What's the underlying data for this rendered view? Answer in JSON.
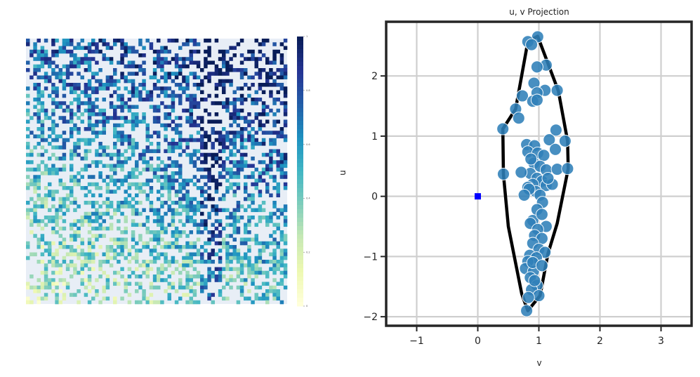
{
  "chart_data": [
    {
      "type": "heatmap",
      "title": "",
      "xlabel": "",
      "ylabel": "",
      "colormap": "YlGnBu",
      "color_range": [
        0,
        1
      ],
      "colorbar_ticks": [
        0,
        0.2,
        0.4,
        0.6,
        0.8,
        1
      ],
      "background_color": "#e8eef6",
      "rows": 72,
      "cols": 72
    },
    {
      "type": "scatter",
      "title": "u, v Projection",
      "xlabel": "v",
      "ylabel": "u",
      "xlim": [
        -1.5,
        3.5
      ],
      "ylim": [
        -2.15,
        2.9
      ],
      "xticks": [
        -1,
        0,
        1,
        2,
        3
      ],
      "yticks": [
        -2,
        -1,
        0,
        1,
        2
      ],
      "xtick_labels": [
        "−1",
        "0",
        "1",
        "2",
        "3"
      ],
      "ytick_labels": [
        "−2",
        "−1",
        "0",
        "1",
        "2"
      ],
      "grid": true,
      "point_color": "#2f7fb8",
      "marker_color": "#0000ff",
      "hull_color": "#000000",
      "origin_marker": [
        0,
        0
      ],
      "points": [
        [
          0.98,
          2.65
        ],
        [
          0.82,
          2.57
        ],
        [
          0.88,
          2.52
        ],
        [
          1.12,
          2.18
        ],
        [
          0.97,
          2.15
        ],
        [
          0.92,
          1.88
        ],
        [
          1.1,
          1.76
        ],
        [
          0.97,
          1.72
        ],
        [
          1.3,
          1.76
        ],
        [
          0.73,
          1.67
        ],
        [
          0.9,
          1.58
        ],
        [
          0.97,
          1.6
        ],
        [
          0.62,
          1.45
        ],
        [
          0.67,
          1.3
        ],
        [
          0.41,
          1.12
        ],
        [
          1.28,
          1.1
        ],
        [
          0.8,
          0.86
        ],
        [
          0.93,
          0.84
        ],
        [
          1.17,
          0.94
        ],
        [
          1.27,
          0.78
        ],
        [
          1.43,
          0.92
        ],
        [
          0.82,
          0.74
        ],
        [
          0.98,
          0.72
        ],
        [
          1.08,
          0.68
        ],
        [
          0.92,
          0.55
        ],
        [
          1.02,
          0.5
        ],
        [
          0.86,
          0.38
        ],
        [
          1.12,
          0.44
        ],
        [
          1.3,
          0.45
        ],
        [
          1.47,
          0.46
        ],
        [
          0.71,
          0.4
        ],
        [
          0.42,
          0.37
        ],
        [
          0.97,
          0.3
        ],
        [
          1.05,
          0.25
        ],
        [
          0.9,
          0.2
        ],
        [
          0.82,
          0.15
        ],
        [
          1.12,
          0.18
        ],
        [
          1.22,
          0.2
        ],
        [
          0.95,
          0.08
        ],
        [
          1.02,
          0.02
        ],
        [
          0.84,
          0.12
        ],
        [
          0.76,
          0.02
        ],
        [
          1.06,
          -0.1
        ],
        [
          0.97,
          -0.22
        ],
        [
          0.9,
          -0.4
        ],
        [
          1.05,
          -0.3
        ],
        [
          0.86,
          -0.45
        ],
        [
          1.12,
          -0.5
        ],
        [
          0.98,
          -0.55
        ],
        [
          0.93,
          -0.65
        ],
        [
          1.05,
          -0.7
        ],
        [
          0.9,
          -0.78
        ],
        [
          1.0,
          -0.88
        ],
        [
          1.1,
          -0.93
        ],
        [
          0.85,
          -0.98
        ],
        [
          0.96,
          -1.02
        ],
        [
          0.82,
          -1.08
        ],
        [
          0.78,
          -1.2
        ],
        [
          0.91,
          -1.25
        ],
        [
          0.86,
          -1.35
        ],
        [
          0.97,
          -1.48
        ],
        [
          0.88,
          -1.55
        ],
        [
          1.0,
          -1.65
        ],
        [
          0.83,
          -1.68
        ],
        [
          0.8,
          -1.9
        ],
        [
          0.9,
          -1.1
        ],
        [
          1.05,
          -1.15
        ],
        [
          0.93,
          -1.4
        ],
        [
          0.87,
          0.62
        ],
        [
          1.15,
          0.3
        ]
      ],
      "hull": [
        [
          0.98,
          2.66
        ],
        [
          1.32,
          1.75
        ],
        [
          1.47,
          0.92
        ],
        [
          1.48,
          0.46
        ],
        [
          1.3,
          -0.45
        ],
        [
          1.15,
          -0.95
        ],
        [
          1.02,
          -1.65
        ],
        [
          0.82,
          -1.9
        ],
        [
          0.72,
          -1.62
        ],
        [
          0.5,
          -0.5
        ],
        [
          0.42,
          0.37
        ],
        [
          0.41,
          1.12
        ],
        [
          0.62,
          1.45
        ],
        [
          0.82,
          2.57
        ]
      ]
    }
  ]
}
